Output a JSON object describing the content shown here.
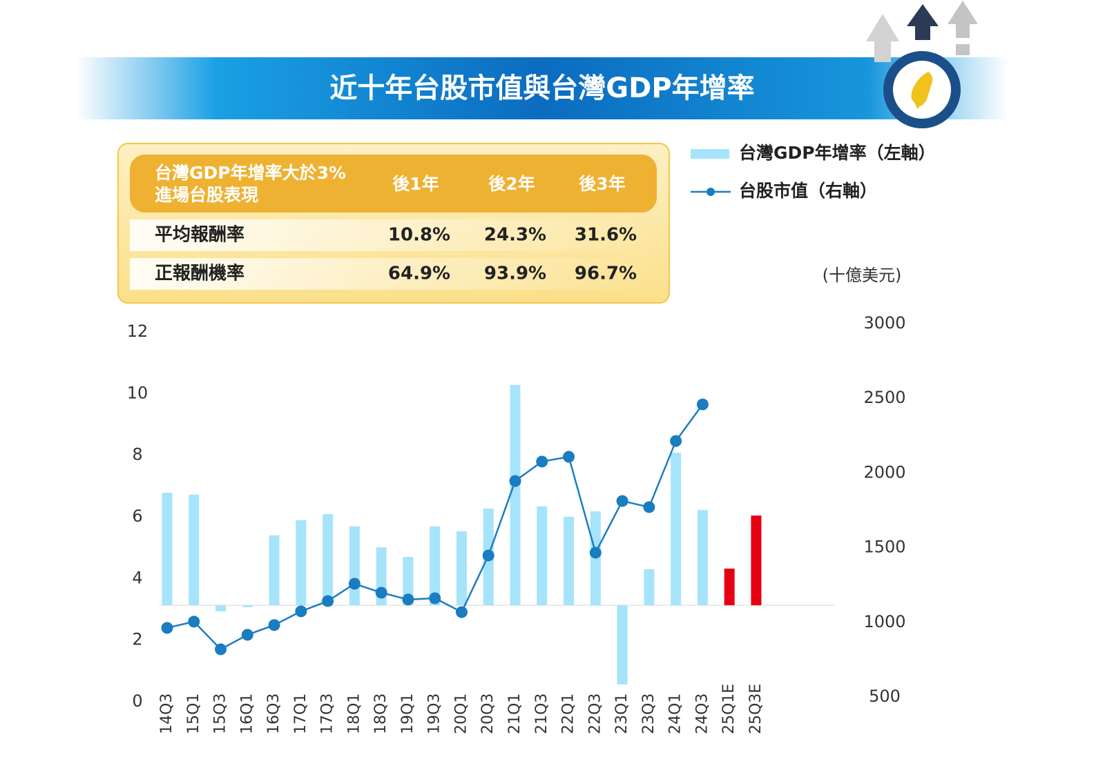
{
  "chart_data": {
    "type": "bar",
    "title": "近十年台股市值與台灣GDP年增率",
    "categories": [
      "14Q3",
      "15Q1",
      "15Q3",
      "16Q1",
      "16Q3",
      "17Q1",
      "17Q3",
      "18Q1",
      "18Q3",
      "19Q1",
      "19Q3",
      "20Q1",
      "20Q3",
      "21Q1",
      "21Q3",
      "22Q1",
      "22Q3",
      "23Q1",
      "23Q3",
      "24Q1",
      "24Q3",
      "25Q1E",
      "25Q3E"
    ],
    "series": [
      {
        "name": "台灣GDP年增率（左軸）",
        "type": "bar",
        "color": "#a6e4fb",
        "colors": [
          "#a6e4fb",
          "#a6e4fb",
          "#a6e4fb",
          "#a6e4fb",
          "#a6e4fb",
          "#a6e4fb",
          "#a6e4fb",
          "#a6e4fb",
          "#a6e4fb",
          "#a6e4fb",
          "#a6e4fb",
          "#a6e4fb",
          "#a6e4fb",
          "#a6e4fb",
          "#a6e4fb",
          "#a6e4fb",
          "#a6e4fb",
          "#a6e4fb",
          "#a6e4fb",
          "#a6e4fb",
          "#a6e4fb",
          "#e60012",
          "#e60012"
        ],
        "values": [
          6.78,
          6.72,
          2.93,
          3.07,
          5.4,
          5.89,
          6.09,
          5.69,
          5.01,
          4.7,
          5.69,
          5.53,
          6.27,
          10.28,
          6.34,
          6.0,
          6.18,
          0.56,
          4.3,
          8.08,
          6.22,
          4.32,
          6.04
        ]
      },
      {
        "name": "台股市值（右軸）",
        "type": "line",
        "axis": "y2",
        "color": "#1a7cc1",
        "values": [
          962,
          1004,
          819,
          916,
          981,
          1073,
          1142,
          1258,
          1198,
          1152,
          1161,
          1068,
          1447,
          1946,
          2076,
          2108,
          1466,
          1812,
          1771,
          2214,
          2459,
          null,
          null
        ]
      }
    ],
    "bar_base": 3.13,
    "ylim": [
      0,
      12
    ],
    "yticks": [
      0,
      2,
      4,
      6,
      8,
      10,
      12
    ],
    "y2lim": [
      500,
      3000
    ],
    "y2ticks": [
      500,
      1000,
      1500,
      2000,
      2500,
      3000
    ],
    "y2_unit": "(十億美元)"
  },
  "table": {
    "header": [
      [
        "台灣GDP年增率大於3%",
        "進場台股表現"
      ],
      "後1年",
      "後2年",
      "後3年"
    ],
    "rows": [
      [
        "平均報酬率",
        "10.8%",
        "24.3%",
        "31.6%"
      ],
      [
        "正報酬機率",
        "64.9%",
        "93.9%",
        "96.7%"
      ]
    ]
  }
}
